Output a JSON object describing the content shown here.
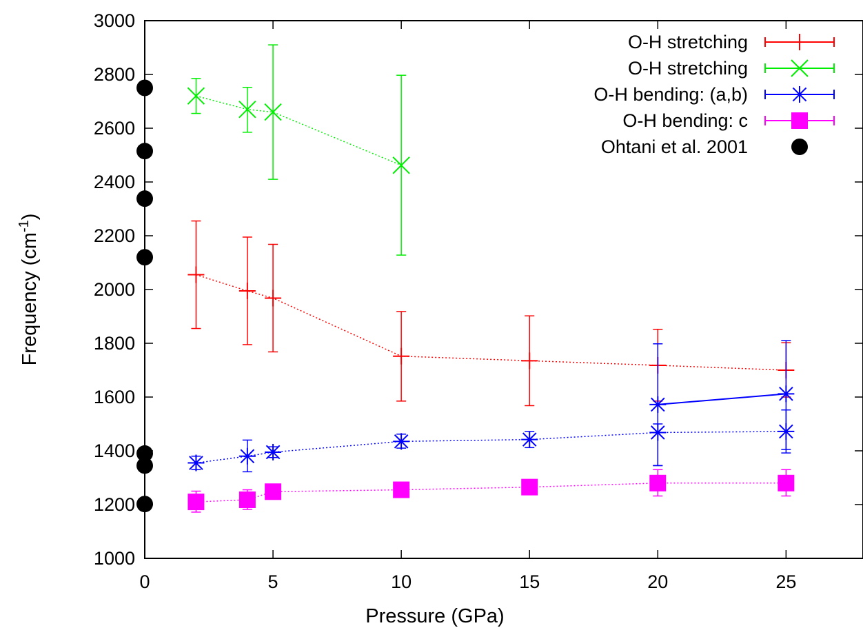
{
  "chart_data": {
    "type": "scatter",
    "xlabel": "Pressure (GPa)",
    "ylabel": {
      "text": "Frequency (cm",
      "sup": "-1",
      "tail": ")"
    },
    "xlim": [
      0,
      28
    ],
    "ylim": [
      1000,
      3000
    ],
    "x_ticks": [
      0,
      5,
      10,
      15,
      20,
      25
    ],
    "y_ticks": [
      1000,
      1200,
      1400,
      1600,
      1800,
      2000,
      2200,
      2400,
      2600,
      2800,
      3000
    ],
    "grid": false,
    "legend_position": "top-right",
    "series": [
      {
        "name": "O-H stretching",
        "color": "#ff0000",
        "marker": "plus",
        "line": "dotted",
        "points": [
          {
            "x": 2,
            "y": 2055,
            "lo": 1855,
            "hi": 2255
          },
          {
            "x": 4,
            "y": 1995,
            "lo": 1795,
            "hi": 2195
          },
          {
            "x": 5,
            "y": 1968,
            "lo": 1768,
            "hi": 2168
          },
          {
            "x": 10,
            "y": 1752,
            "lo": 1585,
            "hi": 1918
          },
          {
            "x": 15,
            "y": 1735,
            "lo": 1568,
            "hi": 1902
          },
          {
            "x": 20,
            "y": 1718,
            "lo": 1585,
            "hi": 1852
          },
          {
            "x": 25,
            "y": 1700,
            "lo": 1600,
            "hi": 1802
          }
        ]
      },
      {
        "name": "O-H stretching",
        "color": "#00ee00",
        "marker": "x",
        "line": "dotted",
        "points": [
          {
            "x": 2,
            "y": 2720,
            "lo": 2655,
            "hi": 2785
          },
          {
            "x": 4,
            "y": 2670,
            "lo": 2585,
            "hi": 2752
          },
          {
            "x": 5,
            "y": 2660,
            "lo": 2410,
            "hi": 2910
          },
          {
            "x": 10,
            "y": 2462,
            "lo": 2128,
            "hi": 2797
          }
        ]
      },
      {
        "name": "O-H bending: (a,b)",
        "color": "#0000ff",
        "marker": "star",
        "line": "dotted",
        "points": [
          {
            "x": 2,
            "y": 1355,
            "lo": 1330,
            "hi": 1380
          },
          {
            "x": 4,
            "y": 1380,
            "lo": 1322,
            "hi": 1440
          },
          {
            "x": 5,
            "y": 1395,
            "lo": 1375,
            "hi": 1415
          },
          {
            "x": 10,
            "y": 1435,
            "lo": 1410,
            "hi": 1462
          },
          {
            "x": 15,
            "y": 1442,
            "lo": 1412,
            "hi": 1472
          },
          {
            "x": 20,
            "y": 1468,
            "lo": 1345,
            "hi": 1500
          },
          {
            "x": 25,
            "y": 1472,
            "lo": 1392,
            "hi": 1552
          }
        ]
      },
      {
        "name": "",
        "color": "#0000ff",
        "marker": "star",
        "line": "solid",
        "points": [
          {
            "x": 20,
            "y": 1572,
            "lo": 1345,
            "hi": 1798
          },
          {
            "x": 25,
            "y": 1612,
            "lo": 1405,
            "hi": 1810
          }
        ]
      },
      {
        "name": "O-H bending: c",
        "color": "#ff00ff",
        "marker": "square",
        "line": "dotted",
        "points": [
          {
            "x": 2,
            "y": 1210,
            "lo": 1172,
            "hi": 1250
          },
          {
            "x": 4,
            "y": 1218,
            "lo": 1182,
            "hi": 1255
          },
          {
            "x": 5,
            "y": 1248,
            "lo": 1248,
            "hi": 1248
          },
          {
            "x": 10,
            "y": 1255,
            "lo": 1255,
            "hi": 1255
          },
          {
            "x": 15,
            "y": 1265,
            "lo": 1265,
            "hi": 1265
          },
          {
            "x": 20,
            "y": 1280,
            "lo": 1232,
            "hi": 1330
          },
          {
            "x": 25,
            "y": 1280,
            "lo": 1232,
            "hi": 1330
          }
        ]
      },
      {
        "name": "Ohtani et al. 2001",
        "color": "#000000",
        "marker": "circle",
        "line": "none",
        "points": [
          {
            "x": 0,
            "y": 1202
          },
          {
            "x": 0,
            "y": 1345
          },
          {
            "x": 0,
            "y": 1390
          },
          {
            "x": 0,
            "y": 2120
          },
          {
            "x": 0,
            "y": 2338
          },
          {
            "x": 0,
            "y": 2515
          },
          {
            "x": 0,
            "y": 2750
          }
        ]
      }
    ]
  }
}
